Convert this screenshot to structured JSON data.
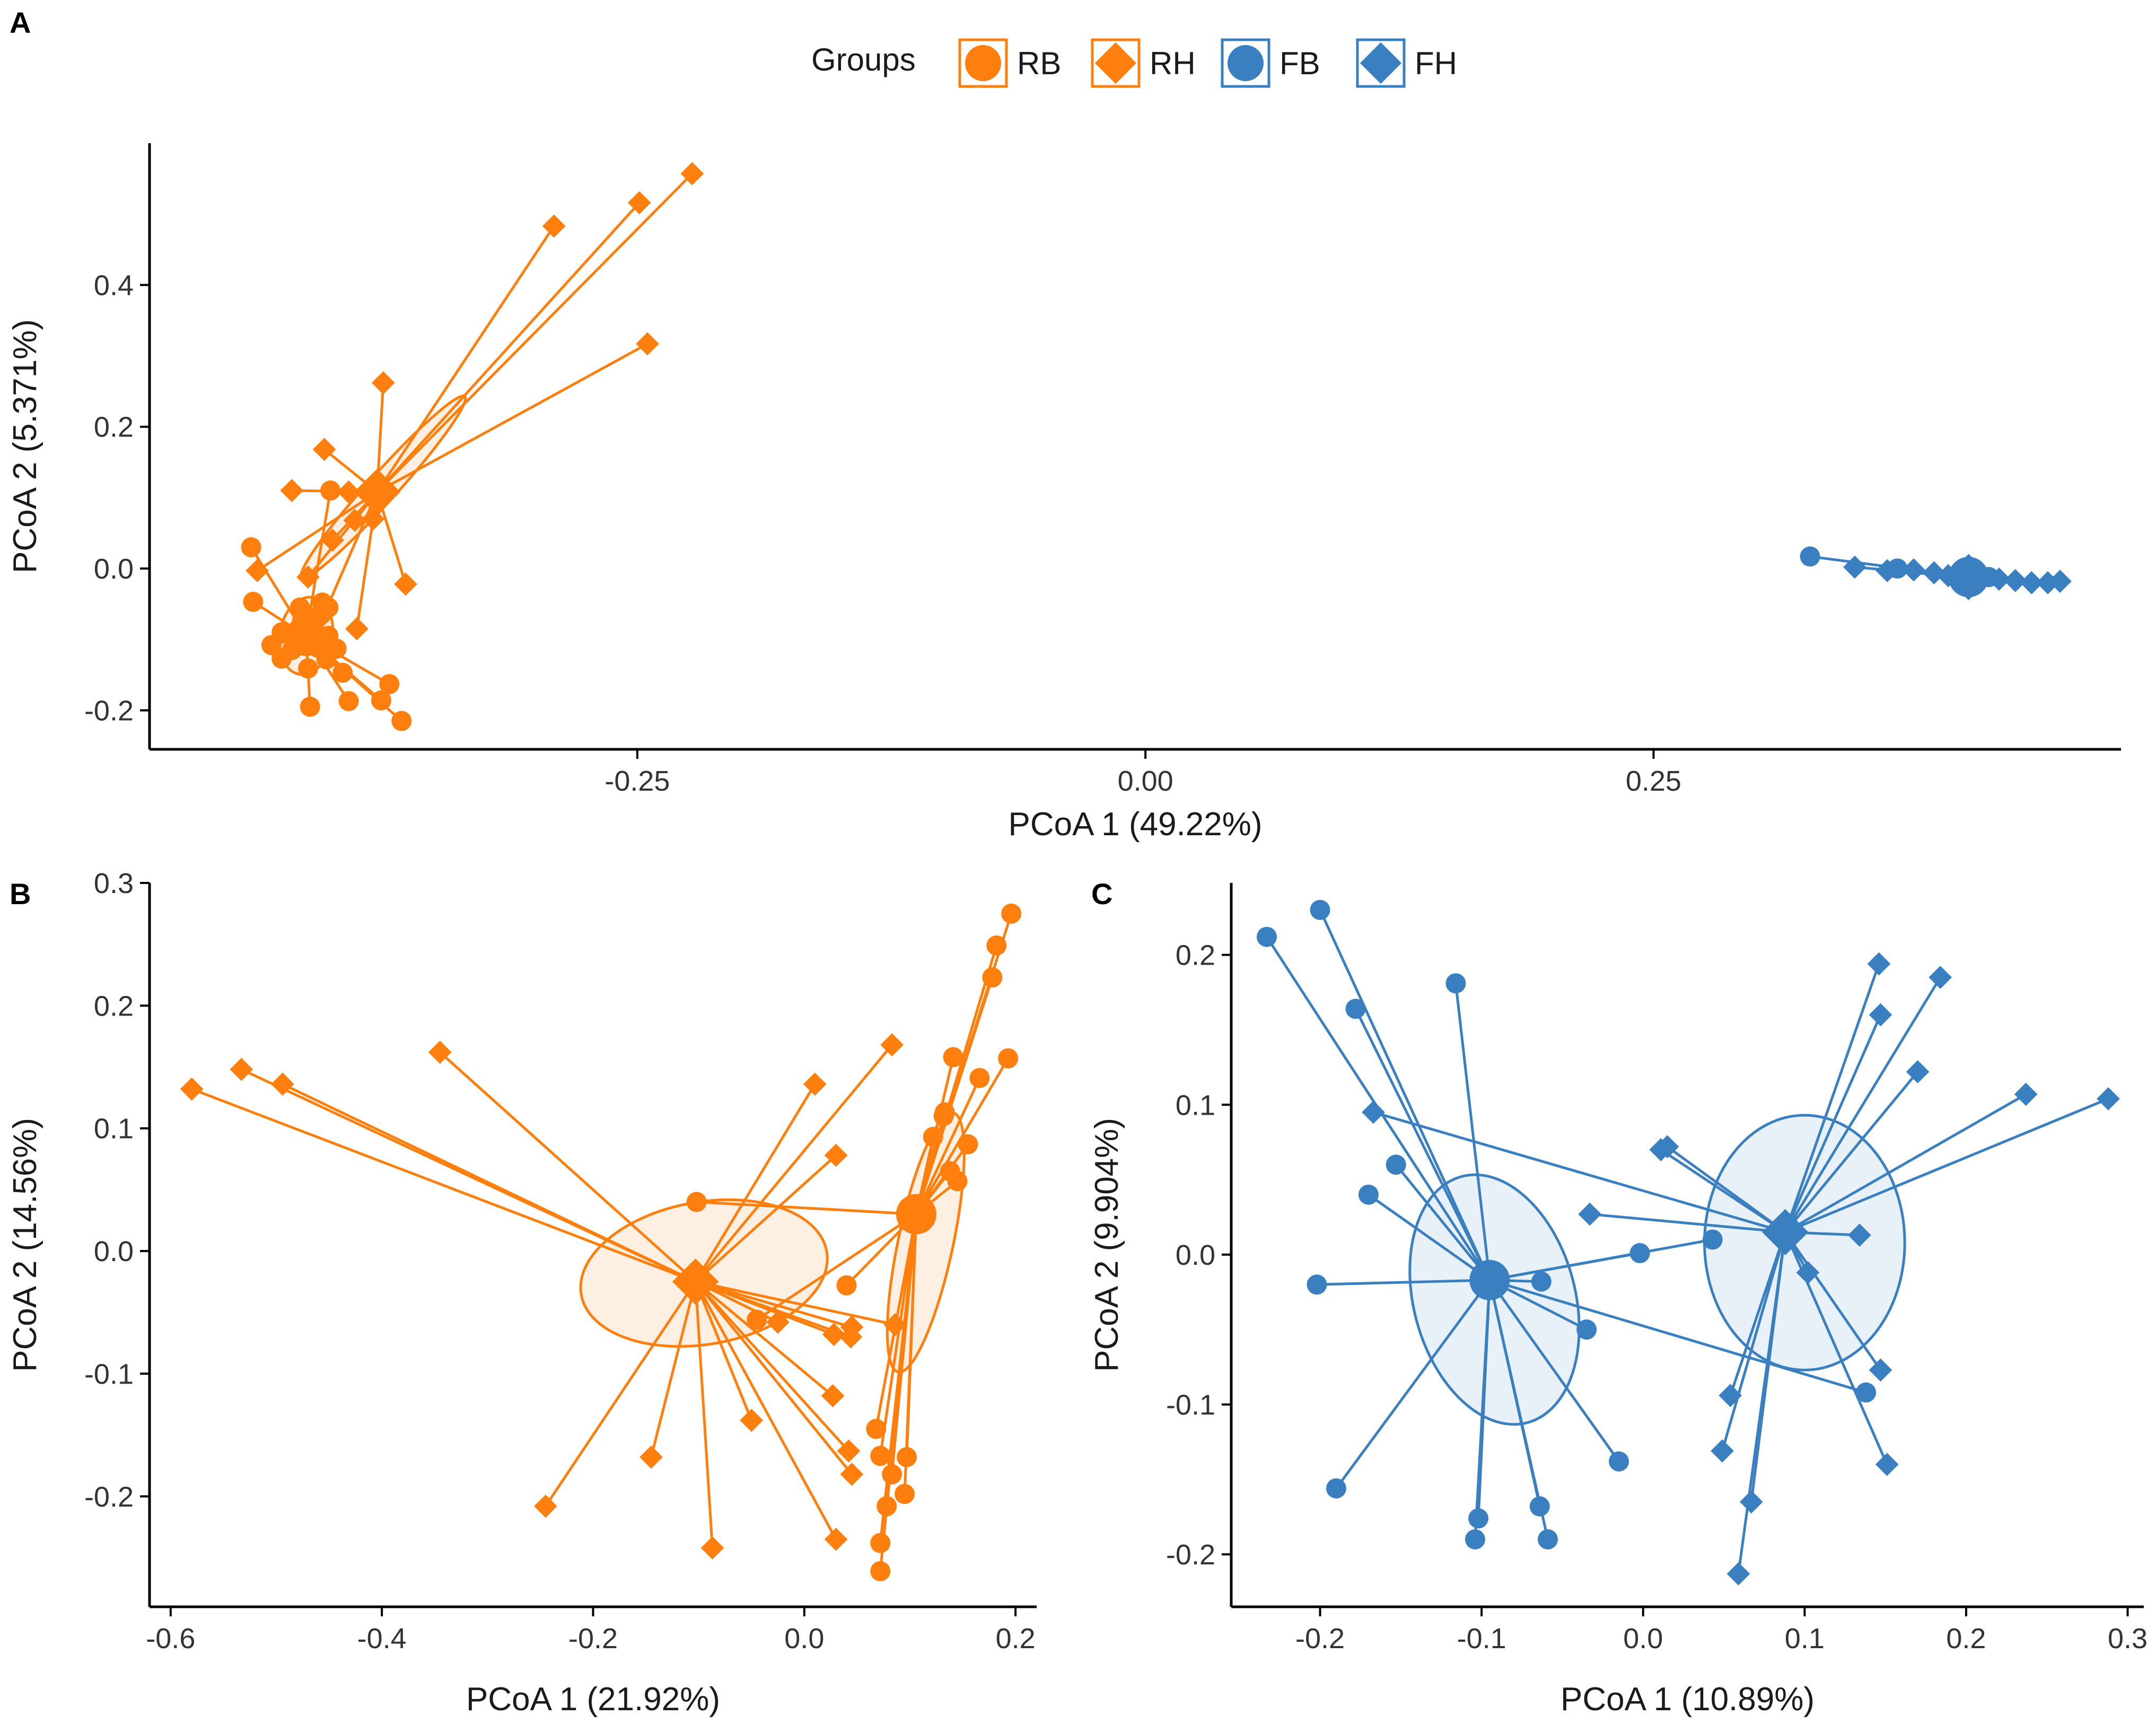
{
  "legend": {
    "title": "Groups",
    "items": [
      {
        "label": "RB",
        "shape": "circle",
        "color": "#FF7F0E"
      },
      {
        "label": "RH",
        "shape": "diamond",
        "color": "#FF7F0E"
      },
      {
        "label": "FB",
        "shape": "circle",
        "color": "#3A7FBF"
      },
      {
        "label": "FH",
        "shape": "diamond",
        "color": "#3A7FBF"
      }
    ]
  },
  "colors": {
    "orange": "#FF7F0E",
    "blue": "#3A7FBF",
    "orange_fill": "#FDEEDF",
    "blue_fill": "#E6EEF7"
  },
  "chart_data": [
    {
      "panel": "A",
      "type": "scatter",
      "xlabel": "PCoA 1 (49.22%)",
      "ylabel": "PCoA 2 (5.371%)",
      "xlim": [
        -0.49,
        0.48
      ],
      "ylim": [
        -0.255,
        0.6
      ],
      "xticks": [
        -0.25,
        0.0,
        0.25
      ],
      "xtick_labels": [
        "-0.25",
        "0.00",
        "0.25"
      ],
      "yticks": [
        -0.2,
        0.0,
        0.2,
        0.4
      ],
      "ytick_labels": [
        "-0.2",
        "0.0",
        "0.2",
        "0.4"
      ],
      "groups": [
        {
          "name": "RB",
          "shape": "circle",
          "color": "orange",
          "centroid": [
            -0.413,
            -0.095
          ],
          "ellipse": {
            "cx": -0.413,
            "cy": -0.095,
            "rx": 0.013,
            "ry": 0.055,
            "angle": 10
          },
          "points": [
            [
              -0.439,
              -0.047
            ],
            [
              -0.43,
              -0.108
            ],
            [
              -0.425,
              -0.09
            ],
            [
              -0.425,
              -0.127
            ],
            [
              -0.42,
              -0.115
            ],
            [
              -0.416,
              -0.055
            ],
            [
              -0.415,
              -0.075
            ],
            [
              -0.413,
              -0.097
            ],
            [
              -0.412,
              -0.141
            ],
            [
              -0.411,
              -0.195
            ],
            [
              -0.409,
              -0.075
            ],
            [
              -0.407,
              -0.112
            ],
            [
              -0.405,
              -0.048
            ],
            [
              -0.403,
              -0.128
            ],
            [
              -0.402,
              -0.055
            ],
            [
              -0.402,
              -0.095
            ],
            [
              -0.398,
              -0.113
            ],
            [
              -0.395,
              -0.147
            ],
            [
              -0.392,
              -0.187
            ],
            [
              -0.376,
              -0.186
            ],
            [
              -0.372,
              -0.163
            ],
            [
              -0.366,
              -0.215
            ],
            [
              -0.401,
              0.11
            ],
            [
              -0.44,
              0.03
            ],
            [
              -0.408,
              -0.068
            ]
          ]
        },
        {
          "name": "RH",
          "shape": "diamond",
          "color": "orange",
          "centroid": [
            -0.378,
            0.108
          ],
          "ellipse": {
            "cx": -0.375,
            "cy": 0.115,
            "rx": 0.06,
            "ry": 0.02,
            "angle": -48
          },
          "points": [
            [
              -0.437,
              -0.003
            ],
            [
              -0.42,
              0.11
            ],
            [
              -0.412,
              -0.012
            ],
            [
              -0.404,
              0.168
            ],
            [
              -0.404,
              -0.064
            ],
            [
              -0.392,
              0.108
            ],
            [
              -0.389,
              0.068
            ],
            [
              -0.388,
              -0.085
            ],
            [
              -0.375,
              0.262
            ],
            [
              -0.364,
              -0.022
            ],
            [
              -0.291,
              0.483
            ],
            [
              -0.249,
              0.516
            ],
            [
              -0.245,
              0.317
            ],
            [
              -0.223,
              0.557
            ],
            [
              -0.4,
              0.04
            ],
            [
              -0.38,
              0.07
            ]
          ]
        },
        {
          "name": "FB",
          "shape": "circle",
          "color": "blue",
          "centroid": [
            0.405,
            -0.012
          ],
          "ellipse": null,
          "points": [
            [
              0.327,
              0.017
            ],
            [
              0.37,
              0.0
            ],
            [
              0.4,
              -0.01
            ],
            [
              0.415,
              -0.012
            ]
          ]
        },
        {
          "name": "FH",
          "shape": "diamond",
          "color": "blue",
          "centroid": [
            0.405,
            -0.012
          ],
          "ellipse": null,
          "points": [
            [
              0.349,
              0.002
            ],
            [
              0.365,
              -0.003
            ],
            [
              0.378,
              -0.002
            ],
            [
              0.388,
              -0.006
            ],
            [
              0.395,
              -0.01
            ],
            [
              0.412,
              -0.012
            ],
            [
              0.42,
              -0.015
            ],
            [
              0.428,
              -0.017
            ],
            [
              0.436,
              -0.02
            ],
            [
              0.444,
              -0.02
            ],
            [
              0.45,
              -0.018
            ]
          ]
        }
      ]
    },
    {
      "panel": "B",
      "type": "scatter",
      "xlabel": "PCoA 1 (21.92%)",
      "ylabel": "PCoA 2 (14.56%)",
      "xlim": [
        -0.62,
        0.22
      ],
      "ylim": [
        -0.29,
        0.3
      ],
      "xticks": [
        -0.6,
        -0.4,
        -0.2,
        0.0,
        0.2
      ],
      "xtick_labels": [
        "-0.6",
        "-0.4",
        "-0.2",
        "0.0",
        "0.2"
      ],
      "yticks": [
        -0.2,
        -0.1,
        0.0,
        0.1,
        0.2,
        0.3
      ],
      "ytick_labels": [
        "-0.2",
        "-0.1",
        "0.0",
        "0.1",
        "0.2",
        "0.3"
      ],
      "groups": [
        {
          "name": "RB",
          "shape": "circle",
          "color": "orange",
          "centroid": [
            0.106,
            0.03
          ],
          "ellipse": {
            "cx": 0.115,
            "cy": 0.007,
            "rx": 0.026,
            "ry": 0.108,
            "angle": 12
          },
          "points": [
            [
              0.196,
              0.275
            ],
            [
              0.182,
              0.249
            ],
            [
              0.178,
              0.223
            ],
            [
              0.193,
              0.157
            ],
            [
              0.166,
              0.141
            ],
            [
              0.141,
              0.158
            ],
            [
              0.132,
              0.11
            ],
            [
              0.133,
              0.113
            ],
            [
              0.155,
              0.087
            ],
            [
              0.122,
              0.093
            ],
            [
              0.145,
              0.057
            ],
            [
              -0.102,
              0.04
            ],
            [
              -0.045,
              -0.056
            ],
            [
              0.068,
              -0.145
            ],
            [
              0.083,
              -0.182
            ],
            [
              0.072,
              -0.167
            ],
            [
              0.097,
              -0.168
            ],
            [
              0.095,
              -0.198
            ],
            [
              0.078,
              -0.208
            ],
            [
              0.072,
              -0.238
            ],
            [
              0.072,
              -0.261
            ],
            [
              0.138,
              0.065
            ],
            [
              0.04,
              -0.028
            ]
          ]
        },
        {
          "name": "RH",
          "shape": "diamond",
          "color": "orange",
          "centroid": [
            -0.103,
            -0.025
          ],
          "ellipse": {
            "cx": -0.095,
            "cy": -0.018,
            "rx": 0.118,
            "ry": 0.058,
            "angle": -10
          },
          "points": [
            [
              -0.58,
              0.132
            ],
            [
              -0.533,
              0.148
            ],
            [
              -0.494,
              0.136
            ],
            [
              -0.345,
              0.162
            ],
            [
              -0.245,
              -0.208
            ],
            [
              -0.145,
              -0.168
            ],
            [
              -0.087,
              -0.242
            ],
            [
              -0.05,
              -0.138
            ],
            [
              -0.025,
              -0.058
            ],
            [
              0.01,
              0.136
            ],
            [
              0.03,
              0.078
            ],
            [
              0.03,
              -0.235
            ],
            [
              0.042,
              -0.163
            ],
            [
              0.044,
              -0.07
            ],
            [
              0.028,
              -0.068
            ],
            [
              0.045,
              -0.062
            ],
            [
              0.045,
              -0.182
            ],
            [
              0.027,
              -0.118
            ],
            [
              0.083,
              0.168
            ],
            [
              0.086,
              -0.06
            ]
          ]
        }
      ]
    },
    {
      "panel": "C",
      "type": "scatter",
      "xlabel": "PCoA 1 (10.89%)",
      "ylabel": "PCoA 2 (9.904%)",
      "xlim": [
        -0.255,
        0.31
      ],
      "ylim": [
        -0.235,
        0.248
      ],
      "xticks": [
        -0.2,
        -0.1,
        0.0,
        0.1,
        0.2,
        0.3
      ],
      "xtick_labels": [
        "-0.2",
        "-0.1",
        "0.0",
        "0.1",
        "0.2",
        "0.3"
      ],
      "yticks": [
        -0.2,
        -0.1,
        0.0,
        0.1,
        0.2
      ],
      "ytick_labels": [
        "-0.2",
        "-0.1",
        "0.0",
        "0.1",
        "0.2"
      ],
      "groups": [
        {
          "name": "FB",
          "shape": "circle",
          "color": "blue",
          "centroid": [
            -0.095,
            -0.017
          ],
          "ellipse": {
            "cx": -0.092,
            "cy": -0.03,
            "rx": 0.05,
            "ry": 0.085,
            "angle": -15
          },
          "points": [
            [
              -0.233,
              0.212
            ],
            [
              -0.2,
              0.23
            ],
            [
              -0.178,
              0.164
            ],
            [
              -0.116,
              0.181
            ],
            [
              -0.153,
              0.06
            ],
            [
              -0.17,
              0.04
            ],
            [
              -0.202,
              -0.02
            ],
            [
              -0.19,
              -0.156
            ],
            [
              -0.102,
              -0.176
            ],
            [
              -0.104,
              -0.19
            ],
            [
              -0.064,
              -0.168
            ],
            [
              -0.059,
              -0.19
            ],
            [
              -0.063,
              -0.018
            ],
            [
              -0.035,
              -0.05
            ],
            [
              -0.002,
              0.001
            ],
            [
              0.043,
              0.01
            ],
            [
              -0.015,
              -0.138
            ],
            [
              0.138,
              -0.092
            ]
          ]
        },
        {
          "name": "FH",
          "shape": "diamond",
          "color": "blue",
          "centroid": [
            0.088,
            0.015
          ],
          "ellipse": {
            "cx": 0.1,
            "cy": 0.008,
            "rx": 0.062,
            "ry": 0.085,
            "angle": 0
          },
          "points": [
            [
              0.146,
              0.194
            ],
            [
              0.184,
              0.185
            ],
            [
              0.147,
              0.16
            ],
            [
              0.17,
              0.122
            ],
            [
              0.237,
              0.107
            ],
            [
              0.288,
              0.104
            ],
            [
              -0.167,
              0.095
            ],
            [
              0.015,
              0.072
            ],
            [
              0.011,
              0.07
            ],
            [
              -0.033,
              0.027
            ],
            [
              0.134,
              0.013
            ],
            [
              0.102,
              -0.012
            ],
            [
              0.147,
              -0.077
            ],
            [
              0.151,
              -0.14
            ],
            [
              0.054,
              -0.094
            ],
            [
              0.049,
              -0.131
            ],
            [
              0.067,
              -0.165
            ],
            [
              0.059,
              -0.213
            ]
          ]
        }
      ]
    }
  ]
}
